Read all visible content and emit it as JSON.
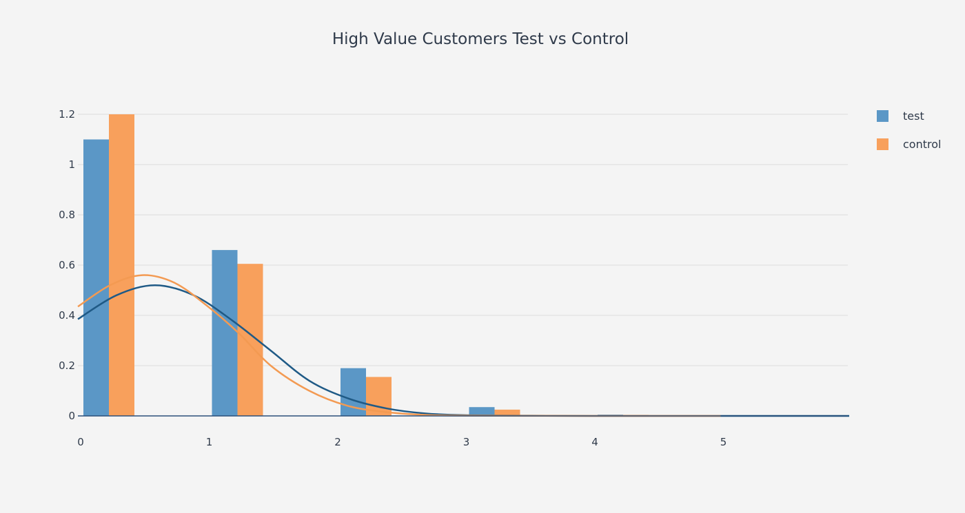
{
  "chart_data": {
    "type": "bar",
    "title": "High Value Customers Test vs Control",
    "xlabel": "",
    "ylabel": "",
    "xlim": [
      0,
      6
    ],
    "ylim": [
      0,
      1.3
    ],
    "x_ticks": [
      0,
      1,
      2,
      3,
      4,
      5
    ],
    "y_ticks": [
      0,
      0.2,
      0.4,
      0.6,
      0.8,
      1,
      1.2
    ],
    "grid": true,
    "legend_position": "top-right",
    "series": [
      {
        "name": "test",
        "color": "#5b97c6",
        "bins": [
          [
            0,
            1.1
          ],
          [
            1,
            0.66
          ],
          [
            2,
            0.19
          ],
          [
            3,
            0.035
          ],
          [
            4,
            0.005
          ],
          [
            5,
            0.002
          ]
        ],
        "curve_color": "#1f5a86",
        "curve": [
          [
            0,
            0.385
          ],
          [
            0.3,
            0.48
          ],
          [
            0.6,
            0.52
          ],
          [
            0.9,
            0.48
          ],
          [
            1.2,
            0.38
          ],
          [
            1.5,
            0.26
          ],
          [
            1.8,
            0.14
          ],
          [
            2.1,
            0.07
          ],
          [
            2.4,
            0.03
          ],
          [
            2.7,
            0.01
          ],
          [
            3.0,
            0.003
          ],
          [
            3.5,
            0.001
          ],
          [
            4.0,
            0.0
          ],
          [
            5.0,
            0.0
          ],
          [
            6.0,
            0.0
          ]
        ]
      },
      {
        "name": "control",
        "color": "#f8a05c",
        "bins": [
          [
            0,
            1.2
          ],
          [
            1,
            0.605
          ],
          [
            2,
            0.155
          ],
          [
            3,
            0.025
          ],
          [
            4,
            0.004
          ],
          [
            5,
            0.002
          ]
        ],
        "curve_color": "#f39a52",
        "curve": [
          [
            0,
            0.435
          ],
          [
            0.25,
            0.52
          ],
          [
            0.5,
            0.56
          ],
          [
            0.75,
            0.53
          ],
          [
            1.0,
            0.44
          ],
          [
            1.25,
            0.33
          ],
          [
            1.5,
            0.2
          ],
          [
            1.8,
            0.1
          ],
          [
            2.1,
            0.04
          ],
          [
            2.4,
            0.015
          ],
          [
            2.7,
            0.004
          ],
          [
            3.0,
            0.001
          ],
          [
            4.0,
            0.0
          ],
          [
            5.0,
            0.0
          ]
        ]
      }
    ]
  }
}
